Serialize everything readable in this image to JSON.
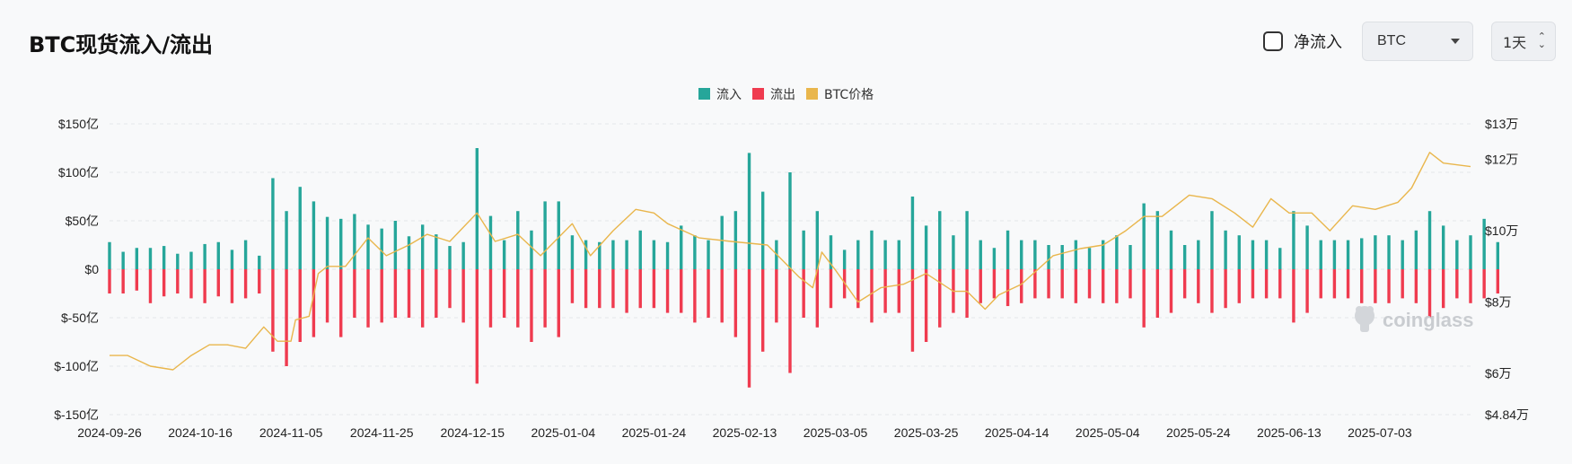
{
  "header": {
    "title": "BTC现货流入/流出",
    "net_flow_label": "净流入",
    "asset_select": {
      "value": "BTC"
    },
    "interval_select": {
      "value": "1天"
    }
  },
  "watermark": "coinglass",
  "colors": {
    "inflow": "#26a69a",
    "outflow": "#ef3b4f",
    "price": "#e9b64c",
    "grid": "#e5e7eb"
  },
  "chart_data": {
    "type": "bar",
    "legend": [
      {
        "name": "流入",
        "color": "#26a69a"
      },
      {
        "name": "流出",
        "color": "#ef3b4f"
      },
      {
        "name": "BTC价格",
        "color": "#e9b64c"
      }
    ],
    "legend_position": "top-center",
    "grid": true,
    "x_start": "2024-09-26",
    "x_end": "2025-07-23",
    "x_tick_labels": [
      "2024-09-26",
      "2024-10-16",
      "2024-11-05",
      "2024-11-25",
      "2024-12-15",
      "2025-01-04",
      "2025-01-24",
      "2025-02-13",
      "2025-03-05",
      "2025-03-25",
      "2025-04-14",
      "2025-05-04",
      "2025-05-24",
      "2025-06-13",
      "2025-07-03"
    ],
    "y_left": {
      "unit": "亿美元",
      "range": [
        -150,
        150
      ],
      "ticks": [
        150,
        100,
        50,
        0,
        -50,
        -100,
        -150
      ],
      "tick_labels": [
        "$150亿",
        "$100亿",
        "$50亿",
        "$0",
        "$-50亿",
        "$-100亿",
        "$-150亿"
      ]
    },
    "y_right": {
      "unit": "万美元",
      "range": [
        4.84,
        13
      ],
      "ticks": [
        13,
        12,
        10,
        8,
        6,
        4.84
      ],
      "tick_labels": [
        "$13万",
        "$12万",
        "$10万",
        "$8万",
        "$6万",
        "$4.84万"
      ]
    },
    "inflow_series": {
      "name": "流入",
      "values_start": "2024-09-26",
      "step_days": 3,
      "values": [
        28,
        18,
        22,
        22,
        24,
        16,
        18,
        26,
        28,
        20,
        30,
        14,
        94,
        60,
        85,
        70,
        54,
        52,
        57,
        46,
        42,
        50,
        34,
        46,
        36,
        24,
        28,
        125,
        55,
        30,
        60,
        40,
        70,
        70,
        35,
        30,
        28,
        30,
        30,
        40,
        30,
        28,
        45,
        35,
        30,
        55,
        60,
        120,
        80,
        30,
        100,
        40,
        60,
        35,
        20,
        30,
        40,
        30,
        30,
        75,
        45,
        60,
        35,
        60,
        30,
        22,
        40,
        30,
        30,
        25,
        25,
        30,
        22,
        30,
        35,
        25,
        68,
        60,
        40,
        25,
        30,
        60,
        40,
        35,
        30,
        30,
        22,
        60,
        45,
        30,
        30,
        30,
        32,
        35,
        35,
        30,
        40,
        60,
        45,
        30,
        35,
        52,
        28
      ]
    },
    "outflow_series": {
      "name": "流出",
      "values_start": "2024-09-26",
      "step_days": 3,
      "values": [
        -25,
        -25,
        -22,
        -35,
        -28,
        -25,
        -30,
        -35,
        -28,
        -35,
        -30,
        -25,
        -85,
        -100,
        -75,
        -70,
        -55,
        -70,
        -50,
        -60,
        -55,
        -50,
        -50,
        -60,
        -50,
        -40,
        -55,
        -118,
        -60,
        -50,
        -60,
        -75,
        -60,
        -70,
        -35,
        -40,
        -40,
        -40,
        -45,
        -40,
        -40,
        -45,
        -45,
        -55,
        -50,
        -55,
        -70,
        -122,
        -85,
        -55,
        -107,
        -50,
        -60,
        -40,
        -30,
        -40,
        -55,
        -45,
        -45,
        -85,
        -75,
        -60,
        -45,
        -50,
        -35,
        -30,
        -38,
        -35,
        -30,
        -30,
        -30,
        -35,
        -30,
        -35,
        -35,
        -30,
        -60,
        -50,
        -45,
        -30,
        -35,
        -45,
        -40,
        -35,
        -30,
        -30,
        -30,
        -55,
        -45,
        -30,
        -30,
        -30,
        -35,
        -35,
        -35,
        -30,
        -35,
        -50,
        -40,
        -30,
        -35,
        -30,
        -25
      ]
    },
    "price_series": {
      "name": "BTC价格",
      "unit": "万美元",
      "points": [
        [
          "2024-09-26",
          6.5
        ],
        [
          "2024-09-30",
          6.5
        ],
        [
          "2024-10-05",
          6.2
        ],
        [
          "2024-10-10",
          6.1
        ],
        [
          "2024-10-14",
          6.5
        ],
        [
          "2024-10-18",
          6.8
        ],
        [
          "2024-10-22",
          6.8
        ],
        [
          "2024-10-26",
          6.7
        ],
        [
          "2024-10-30",
          7.3
        ],
        [
          "2024-11-02",
          6.9
        ],
        [
          "2024-11-05",
          6.9
        ],
        [
          "2024-11-06",
          7.5
        ],
        [
          "2024-11-09",
          7.6
        ],
        [
          "2024-11-11",
          8.8
        ],
        [
          "2024-11-13",
          9.0
        ],
        [
          "2024-11-17",
          9.0
        ],
        [
          "2024-11-22",
          9.8
        ],
        [
          "2024-11-26",
          9.3
        ],
        [
          "2024-12-01",
          9.6
        ],
        [
          "2024-12-05",
          9.9
        ],
        [
          "2024-12-10",
          9.7
        ],
        [
          "2024-12-16",
          10.5
        ],
        [
          "2024-12-20",
          9.7
        ],
        [
          "2024-12-25",
          9.9
        ],
        [
          "2024-12-30",
          9.3
        ],
        [
          "2025-01-06",
          10.2
        ],
        [
          "2025-01-10",
          9.3
        ],
        [
          "2025-01-15",
          10.0
        ],
        [
          "2025-01-20",
          10.6
        ],
        [
          "2025-01-24",
          10.5
        ],
        [
          "2025-01-27",
          10.2
        ],
        [
          "2025-02-03",
          9.8
        ],
        [
          "2025-02-10",
          9.7
        ],
        [
          "2025-02-18",
          9.6
        ],
        [
          "2025-02-25",
          8.7
        ],
        [
          "2025-02-28",
          8.4
        ],
        [
          "2025-03-02",
          9.4
        ],
        [
          "2025-03-05",
          8.9
        ],
        [
          "2025-03-10",
          8.0
        ],
        [
          "2025-03-15",
          8.4
        ],
        [
          "2025-03-20",
          8.5
        ],
        [
          "2025-03-25",
          8.8
        ],
        [
          "2025-03-31",
          8.3
        ],
        [
          "2025-04-03",
          8.3
        ],
        [
          "2025-04-07",
          7.8
        ],
        [
          "2025-04-10",
          8.2
        ],
        [
          "2025-04-15",
          8.5
        ],
        [
          "2025-04-22",
          9.3
        ],
        [
          "2025-04-28",
          9.5
        ],
        [
          "2025-05-03",
          9.6
        ],
        [
          "2025-05-08",
          10.0
        ],
        [
          "2025-05-12",
          10.4
        ],
        [
          "2025-05-16",
          10.4
        ],
        [
          "2025-05-22",
          11.0
        ],
        [
          "2025-05-27",
          10.9
        ],
        [
          "2025-06-01",
          10.5
        ],
        [
          "2025-06-05",
          10.1
        ],
        [
          "2025-06-09",
          10.9
        ],
        [
          "2025-06-13",
          10.5
        ],
        [
          "2025-06-18",
          10.5
        ],
        [
          "2025-06-22",
          10.0
        ],
        [
          "2025-06-27",
          10.7
        ],
        [
          "2025-07-02",
          10.6
        ],
        [
          "2025-07-07",
          10.8
        ],
        [
          "2025-07-10",
          11.2
        ],
        [
          "2025-07-14",
          12.2
        ],
        [
          "2025-07-17",
          11.9
        ],
        [
          "2025-07-23",
          11.8
        ]
      ]
    }
  }
}
